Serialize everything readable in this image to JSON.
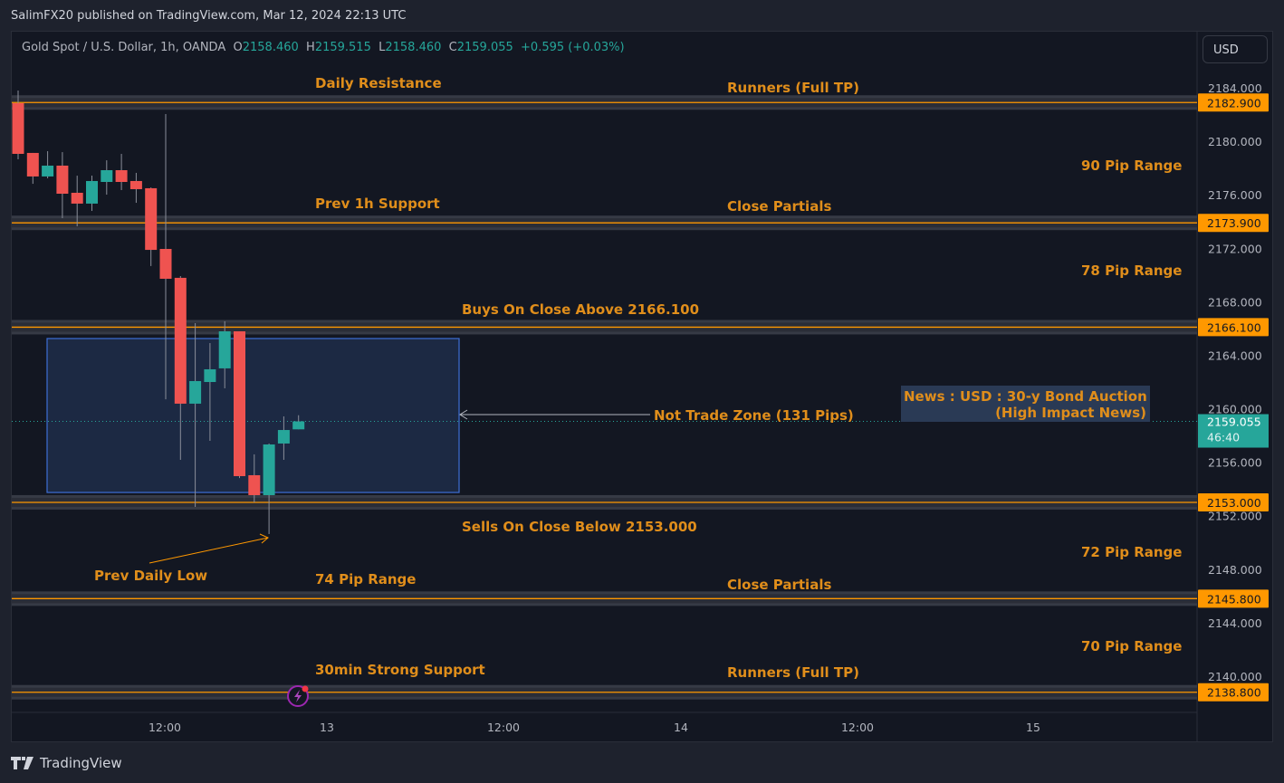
{
  "header": {
    "published": "SalimFX20 published on TradingView.com, Mar 12, 2024 22:13 UTC"
  },
  "legend": {
    "symbol": "Gold Spot / U.S. Dollar, 1h, OANDA",
    "o_label": "O",
    "o": "2158.460",
    "h_label": "H",
    "h": "2159.515",
    "l_label": "L",
    "l": "2158.460",
    "c_label": "C",
    "c": "2159.055",
    "change": "+0.595 (+0.03%)"
  },
  "currency_button": "USD",
  "footer": {
    "brand": "TradingView"
  },
  "colors": {
    "up": "#26a69a",
    "down": "#ef5350",
    "level": "#ff9800",
    "annotation": "#e08e1b",
    "zone": "#1c2943",
    "zone_border": "#3d6fd6"
  },
  "chart_data": {
    "type": "candlestick",
    "title": "Gold Spot / U.S. Dollar, 1h, OANDA",
    "ylim": [
      2136.5,
      2186.6
    ],
    "y_ticks": [
      "2184.000",
      "2180.000",
      "2176.000",
      "2172.000",
      "2168.000",
      "2164.000",
      "2160.000",
      "2156.000",
      "2152.000",
      "2148.000",
      "2144.000",
      "2140.000"
    ],
    "x_ticks": [
      "12:00",
      "13",
      "12:00",
      "14",
      "12:00",
      "15"
    ],
    "candles": [
      [
        2182.85,
        2183.8,
        2178.65,
        2179.06
      ],
      [
        2179.13,
        2179.13,
        2176.82,
        2177.37
      ],
      [
        2177.37,
        2179.26,
        2177.23,
        2178.18
      ],
      [
        2178.18,
        2179.19,
        2174.25,
        2176.08
      ],
      [
        2176.15,
        2177.43,
        2173.64,
        2175.34
      ],
      [
        2175.34,
        2177.43,
        2174.79,
        2177.03
      ],
      [
        2176.96,
        2178.58,
        2176.01,
        2177.84
      ],
      [
        2177.84,
        2179.06,
        2176.35,
        2176.96
      ],
      [
        2177.03,
        2177.64,
        2175.4,
        2176.42
      ],
      [
        2176.49,
        2176.55,
        2170.67,
        2171.88
      ],
      [
        2171.95,
        2182.04,
        2160.71,
        2169.72
      ],
      [
        2169.79,
        2169.92,
        2156.18,
        2160.38
      ],
      [
        2160.38,
        2166.4,
        2152.66,
        2162.07
      ],
      [
        2162.0,
        2164.91,
        2157.6,
        2162.95
      ],
      [
        2163.02,
        2166.54,
        2161.53,
        2165.79
      ],
      [
        2165.79,
        2165.79,
        2154.82,
        2154.96
      ],
      [
        2155.03,
        2156.59,
        2153.0,
        2153.54
      ],
      [
        2153.54,
        2157.4,
        2150.63,
        2157.33
      ],
      [
        2157.4,
        2159.43,
        2156.18,
        2158.41
      ],
      [
        2158.46,
        2159.515,
        2158.46,
        2159.055
      ]
    ],
    "levels": [
      {
        "price": 2182.9,
        "label": "2182.900"
      },
      {
        "price": 2173.9,
        "label": "2173.900"
      },
      {
        "price": 2166.1,
        "label": "2166.100"
      },
      {
        "price": 2153.0,
        "label": "2153.000"
      },
      {
        "price": 2145.8,
        "label": "2145.800"
      },
      {
        "price": 2138.8,
        "label": "2138.800"
      }
    ],
    "last_price": {
      "price": 2159.055,
      "label": "2159.055",
      "countdown": "46:40"
    },
    "zone": {
      "top": 2165.25,
      "bottom": 2153.74
    },
    "annotations": [
      "Daily Resistance",
      "Runners (Full TP)",
      "90 Pip Range",
      "Prev 1h Support",
      "Close Partials",
      "78 Pip Range",
      "Buys On Close Above 2166.100",
      "Not Trade Zone (131 Pips)",
      "Sells On Close Below 2153.000",
      "72 Pip Range",
      "Prev Daily Low",
      "74 Pip Range",
      "Close Partials",
      "70 Pip Range",
      "30min Strong Support",
      "Runners (Full TP)"
    ],
    "news": {
      "line1": "News : USD : 30-y Bond Auction",
      "line2": "(High Impact News)"
    }
  }
}
